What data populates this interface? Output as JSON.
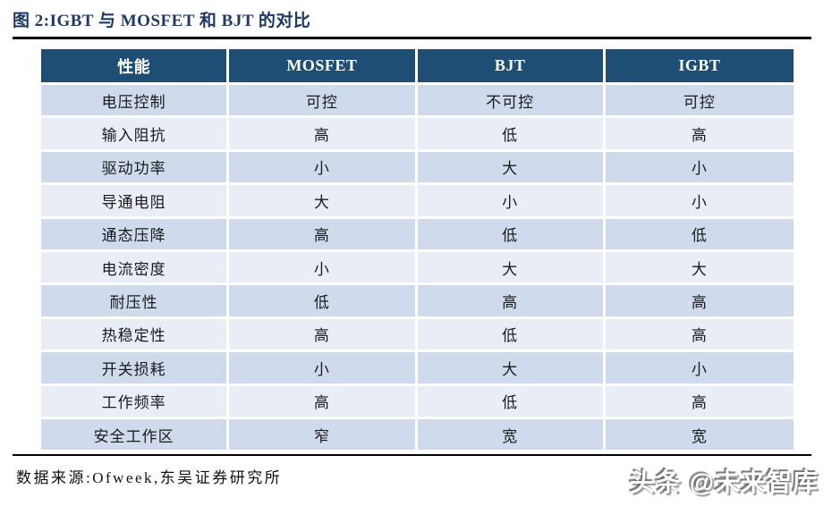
{
  "figure": {
    "title": "图 2:IGBT 与 MOSFET 和 BJT 的对比",
    "source": "数据来源:Ofweek,东吴证券研究所",
    "watermark": "头条 @未来智库"
  },
  "colors": {
    "title": "#1F3864",
    "rule": "#000000",
    "header_bg": "#1F4E74",
    "header_text": "#FFFFFF",
    "row_odd": "#CFDBEC",
    "row_even": "#E9EEF6",
    "body_text": "#1A1A1A"
  },
  "chart_data": {
    "type": "table",
    "title": "图 2:IGBT 与 MOSFET 和 BJT 的对比",
    "columns": [
      "性能",
      "MOSFET",
      "BJT",
      "IGBT"
    ],
    "rows": [
      [
        "电压控制",
        "可控",
        "不可控",
        "可控"
      ],
      [
        "输入阻抗",
        "高",
        "低",
        "高"
      ],
      [
        "驱动功率",
        "小",
        "大",
        "小"
      ],
      [
        "导通电阻",
        "大",
        "小",
        "小"
      ],
      [
        "通态压降",
        "高",
        "低",
        "低"
      ],
      [
        "电流密度",
        "小",
        "大",
        "大"
      ],
      [
        "耐压性",
        "低",
        "高",
        "高"
      ],
      [
        "热稳定性",
        "高",
        "低",
        "高"
      ],
      [
        "开关损耗",
        "小",
        "大",
        "小"
      ],
      [
        "工作频率",
        "高",
        "低",
        "高"
      ],
      [
        "安全工作区",
        "窄",
        "宽",
        "宽"
      ]
    ],
    "source": "数据来源:Ofweek,东吴证券研究所"
  }
}
